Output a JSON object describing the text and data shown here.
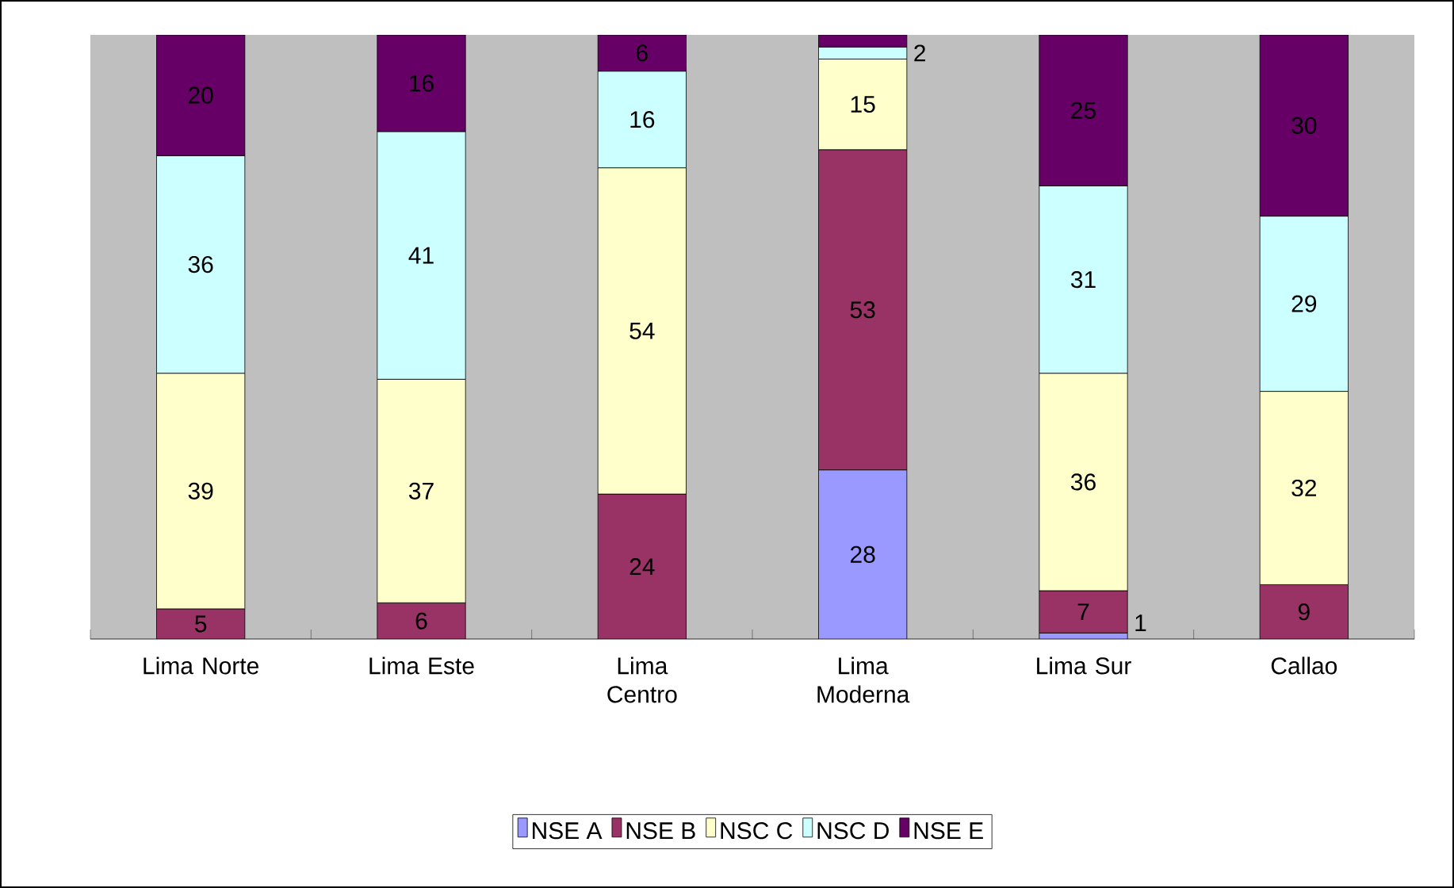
{
  "chart_data": {
    "type": "bar",
    "stacked": true,
    "legend": "bottom",
    "tick_labels": "x",
    "categories": [
      "Lima Norte",
      "Lima Este",
      "Lima Centro",
      "Lima Moderna",
      "Lima Sur",
      "Callao"
    ],
    "ylim": [
      0,
      100
    ],
    "series": [
      {
        "name": "NSE A",
        "color": "#9999ff",
        "values": [
          0,
          0,
          0,
          28,
          1,
          0
        ],
        "value_labels": [
          null,
          null,
          null,
          "28",
          "1",
          null
        ]
      },
      {
        "name": "NSE B",
        "color": "#993366",
        "values": [
          5,
          6,
          24,
          53,
          7,
          9
        ],
        "value_labels": [
          "5",
          "6",
          "24",
          "53",
          "7",
          "9"
        ]
      },
      {
        "name": "NSC C",
        "color": "#ffffcc",
        "values": [
          39,
          37,
          54,
          15,
          36,
          32
        ],
        "value_labels": [
          "39",
          "37",
          "54",
          "15",
          "36",
          "32"
        ]
      },
      {
        "name": "NSC D",
        "color": "#ccffff",
        "values": [
          36,
          41,
          16,
          2,
          31,
          29
        ],
        "value_labels": [
          "36",
          "41",
          "16",
          "2",
          "31",
          "29"
        ]
      },
      {
        "name": "NSE E",
        "color": "#660066",
        "values": [
          20,
          16,
          6,
          2,
          25,
          30
        ],
        "value_labels": [
          "20",
          "16",
          "6",
          null,
          "25",
          "30"
        ]
      }
    ]
  }
}
